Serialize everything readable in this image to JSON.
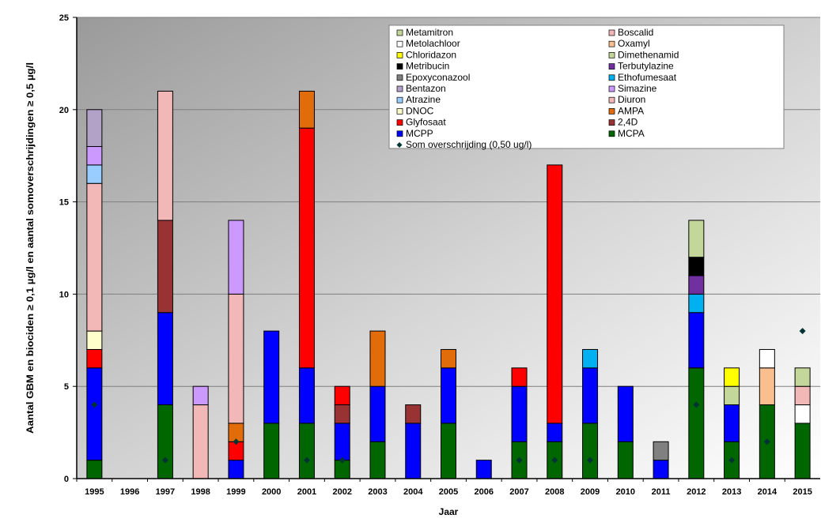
{
  "chart_data": {
    "type": "bar",
    "stacked": true,
    "xlabel": "Jaar",
    "ylabel": "Aantal GBM en biociden ≥ 0,1 µg/l en aantal somoverschrijdingen ≥ 0,5 µg/l",
    "ylim": [
      0,
      25
    ],
    "yticks": [
      "0",
      "5",
      "10",
      "15",
      "20",
      "25"
    ],
    "grid": true,
    "legend_position": "top-right",
    "categories": [
      "1995",
      "1996",
      "1997",
      "1998",
      "1999",
      "2000",
      "2001",
      "2002",
      "2003",
      "2004",
      "2005",
      "2006",
      "2007",
      "2008",
      "2009",
      "2010",
      "2011",
      "2012",
      "2013",
      "2014",
      "2015"
    ],
    "series": [
      {
        "name": "MCPA",
        "color": "#006600",
        "values": [
          1,
          0,
          4,
          0,
          0,
          3,
          3,
          1,
          2,
          0,
          3,
          0,
          2,
          2,
          3,
          2,
          0,
          6,
          2,
          4,
          3
        ]
      },
      {
        "name": "MCPP",
        "color": "#0000ff",
        "values": [
          5,
          0,
          5,
          0,
          1,
          5,
          3,
          2,
          3,
          3,
          3,
          1,
          3,
          1,
          3,
          3,
          1,
          3,
          2,
          0,
          0
        ]
      },
      {
        "name": "2,4D",
        "color": "#993333",
        "values": [
          0,
          0,
          5,
          0,
          0,
          0,
          0,
          1,
          0,
          1,
          0,
          0,
          0,
          0,
          0,
          0,
          0,
          0,
          0,
          0,
          0
        ]
      },
      {
        "name": "Glyfosaat",
        "color": "#ff0000",
        "values": [
          1,
          0,
          0,
          0,
          1,
          0,
          13,
          1,
          0,
          0,
          0,
          0,
          1,
          14,
          0,
          0,
          0,
          0,
          0,
          0,
          0
        ]
      },
      {
        "name": "AMPA",
        "color": "#e36c0a",
        "values": [
          0,
          0,
          0,
          0,
          1,
          0,
          2,
          0,
          3,
          0,
          1,
          0,
          0,
          0,
          0,
          0,
          0,
          0,
          0,
          0,
          0
        ]
      },
      {
        "name": "DNOC",
        "color": "#ffffcc",
        "values": [
          1,
          0,
          0,
          0,
          0,
          0,
          0,
          0,
          0,
          0,
          0,
          0,
          0,
          0,
          0,
          0,
          0,
          0,
          0,
          0,
          0
        ]
      },
      {
        "name": "Diuron",
        "color": "#f2b8b8",
        "values": [
          8,
          0,
          7,
          4,
          7,
          0,
          0,
          0,
          0,
          0,
          0,
          0,
          0,
          0,
          0,
          0,
          0,
          0,
          0,
          0,
          0
        ]
      },
      {
        "name": "Atrazine",
        "color": "#99ccff",
        "values": [
          1,
          0,
          0,
          0,
          0,
          0,
          0,
          0,
          0,
          0,
          0,
          0,
          0,
          0,
          0,
          0,
          0,
          0,
          0,
          0,
          0
        ]
      },
      {
        "name": "Simazine",
        "color": "#cc99ff",
        "values": [
          1,
          0,
          0,
          1,
          4,
          0,
          0,
          0,
          0,
          0,
          0,
          0,
          0,
          0,
          0,
          0,
          0,
          0,
          0,
          0,
          0
        ]
      },
      {
        "name": "Bentazon",
        "color": "#b3a2c7",
        "values": [
          2,
          0,
          0,
          0,
          0,
          0,
          0,
          0,
          0,
          0,
          0,
          0,
          0,
          0,
          0,
          0,
          0,
          0,
          0,
          0,
          0
        ]
      },
      {
        "name": "Ethofumesaat",
        "color": "#00b0f0",
        "values": [
          0,
          0,
          0,
          0,
          0,
          0,
          0,
          0,
          0,
          0,
          0,
          0,
          0,
          0,
          1,
          0,
          0,
          1,
          0,
          0,
          0
        ]
      },
      {
        "name": "Epoxyconazool",
        "color": "#808080",
        "values": [
          0,
          0,
          0,
          0,
          0,
          0,
          0,
          0,
          0,
          0,
          0,
          0,
          0,
          0,
          0,
          0,
          1,
          0,
          0,
          0,
          0
        ]
      },
      {
        "name": "Terbutylazine",
        "color": "#7030a0",
        "values": [
          0,
          0,
          0,
          0,
          0,
          0,
          0,
          0,
          0,
          0,
          0,
          0,
          0,
          0,
          0,
          0,
          0,
          1,
          0,
          0,
          0
        ]
      },
      {
        "name": "Metribucin",
        "color": "#000000",
        "values": [
          0,
          0,
          0,
          0,
          0,
          0,
          0,
          0,
          0,
          0,
          0,
          0,
          0,
          0,
          0,
          0,
          0,
          1,
          0,
          0,
          0
        ]
      },
      {
        "name": "Dimethenamid",
        "color": "#c4d79b",
        "values": [
          0,
          0,
          0,
          0,
          0,
          0,
          0,
          0,
          0,
          0,
          0,
          0,
          0,
          0,
          0,
          0,
          0,
          0,
          1,
          0,
          0
        ]
      },
      {
        "name": "Chloridazon",
        "color": "#ffff00",
        "values": [
          0,
          0,
          0,
          0,
          0,
          0,
          0,
          0,
          0,
          0,
          0,
          0,
          0,
          0,
          0,
          0,
          0,
          0,
          1,
          0,
          0
        ]
      },
      {
        "name": "Oxamyl",
        "color": "#fabf8f",
        "values": [
          0,
          0,
          0,
          0,
          0,
          0,
          0,
          0,
          0,
          0,
          0,
          0,
          0,
          0,
          0,
          0,
          0,
          0,
          0,
          2,
          0
        ]
      },
      {
        "name": "Metolachloor",
        "color": "#ffffff",
        "values": [
          0,
          0,
          0,
          0,
          0,
          0,
          0,
          0,
          0,
          0,
          0,
          0,
          0,
          0,
          0,
          0,
          0,
          0,
          0,
          1,
          1
        ]
      },
      {
        "name": "Boscalid",
        "color": "#f2b8b8",
        "values": [
          0,
          0,
          0,
          0,
          0,
          0,
          0,
          0,
          0,
          0,
          0,
          0,
          0,
          0,
          0,
          0,
          0,
          0,
          0,
          0,
          1
        ]
      },
      {
        "name": "Metamitron",
        "color": "#c4d79b",
        "values": [
          0,
          0,
          0,
          0,
          0,
          0,
          0,
          0,
          0,
          0,
          0,
          0,
          0,
          0,
          0,
          0,
          0,
          2,
          0,
          0,
          1
        ]
      }
    ],
    "marker_series": {
      "name": "Som overschrijding (0,50 ug/l)",
      "color": "#003333",
      "values": [
        4,
        null,
        1,
        null,
        2,
        null,
        1,
        1,
        null,
        null,
        null,
        null,
        1,
        1,
        1,
        null,
        null,
        4,
        1,
        2,
        8
      ]
    },
    "legend_rows": [
      [
        "Metamitron",
        "Boscalid"
      ],
      [
        "Metolachloor",
        "Oxamyl"
      ],
      [
        "Chloridazon",
        "Dimethenamid"
      ],
      [
        "Metribucin",
        "Terbutylazine"
      ],
      [
        "Epoxyconazool",
        "Ethofumesaat"
      ],
      [
        "Bentazon",
        "Simazine"
      ],
      [
        "Atrazine",
        "Diuron"
      ],
      [
        "DNOC",
        "AMPA"
      ],
      [
        "Glyfosaat",
        "2,4D"
      ],
      [
        "MCPP",
        "MCPA"
      ]
    ]
  }
}
